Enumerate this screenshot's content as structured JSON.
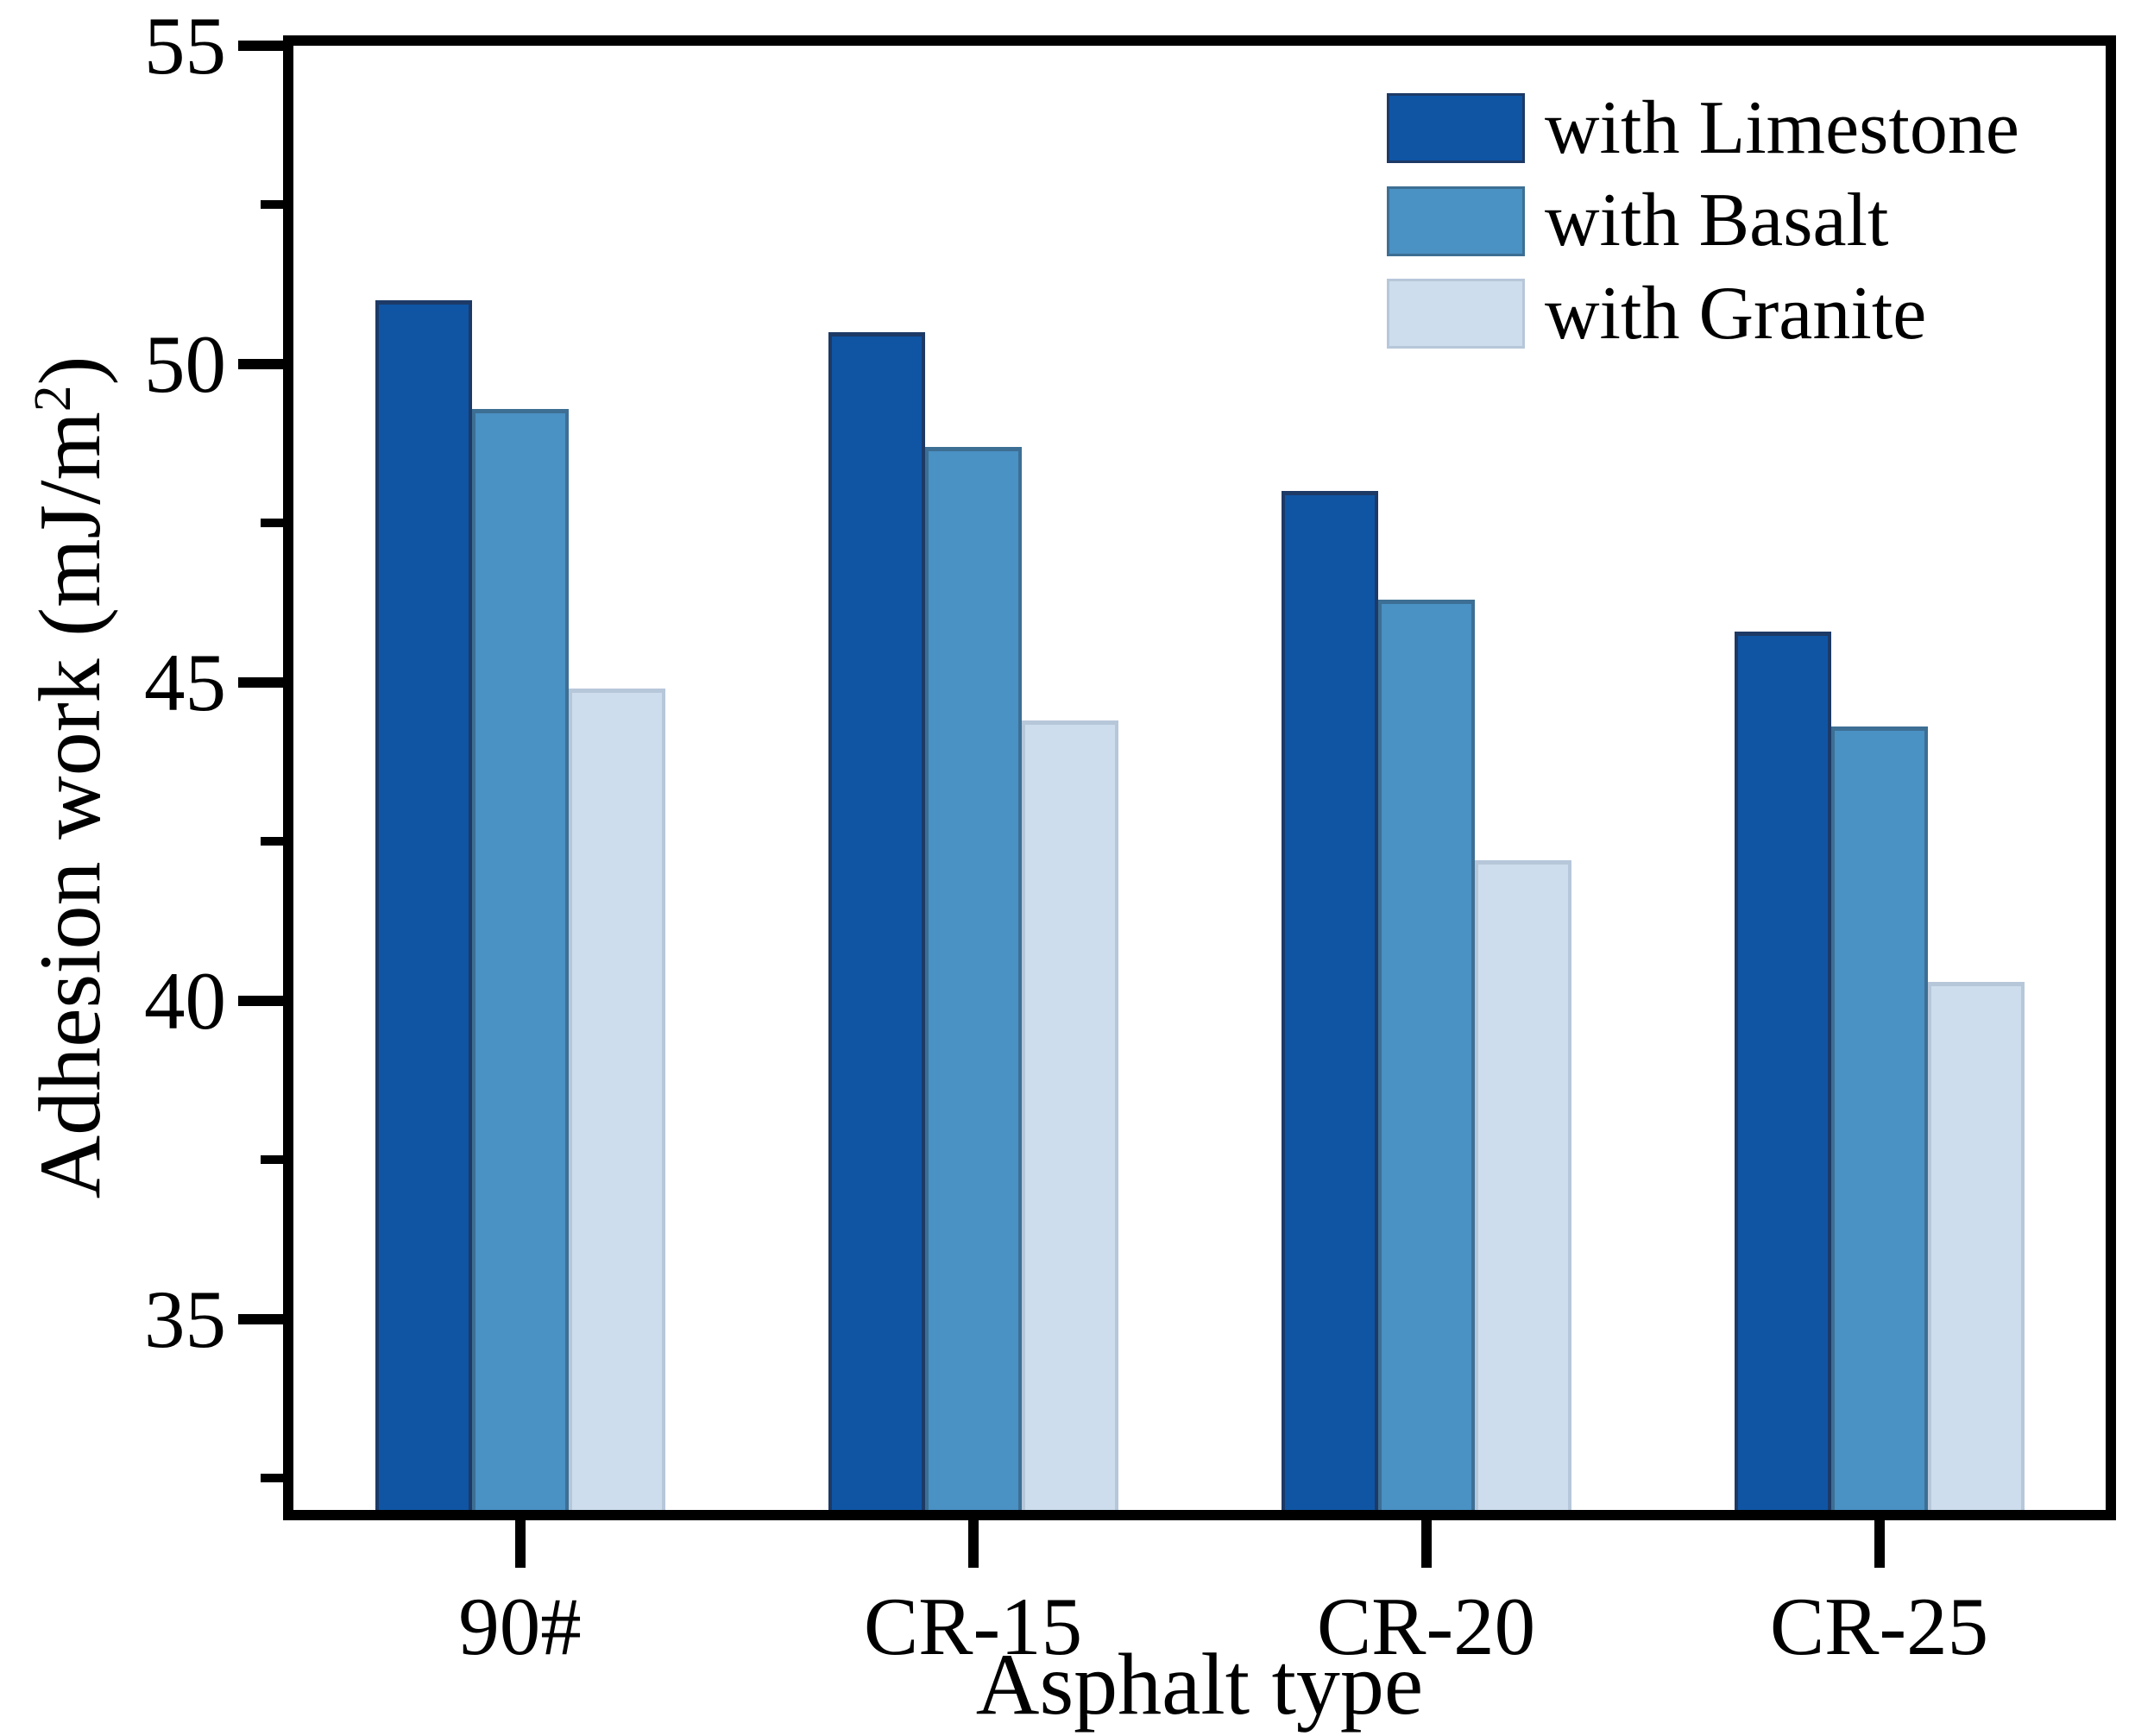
{
  "figure": {
    "background": "#ffffff",
    "text_color": "#000000",
    "axis_color": "#000000"
  },
  "y_axis": {
    "title_main": "Adhesion work (mJ/m",
    "title_sup": "2",
    "title_close": ")",
    "tick_labels": [
      "35",
      "40",
      "45",
      "50",
      "55"
    ]
  },
  "x_axis": {
    "title": "Asphalt type",
    "tick_labels": [
      "90#",
      "CR-15",
      "CR-20",
      "CR-25"
    ]
  },
  "legend": {
    "entries": [
      "with Limestone",
      "with Basalt",
      "with Granite"
    ]
  },
  "chart_data": {
    "type": "bar",
    "categories": [
      "90#",
      "CR-15",
      "CR-20",
      "CR-25"
    ],
    "series": [
      {
        "name": "with Limestone",
        "color": "#0f55a4",
        "edge_color": "#1d3a66",
        "values": [
          51.0,
          50.5,
          48.0,
          45.8
        ]
      },
      {
        "name": "with Basalt",
        "color": "#4a91c4",
        "edge_color": "#3d6f94",
        "values": [
          49.3,
          48.7,
          46.3,
          44.3
        ]
      },
      {
        "name": "with Granite",
        "color": "#cddded",
        "edge_color": "#b7c7da",
        "values": [
          44.9,
          44.4,
          42.2,
          40.3
        ]
      }
    ],
    "title": "",
    "xlabel": "Asphalt type",
    "ylabel": "Adhesion work (mJ/m²)",
    "ylim": [
      32,
      55
    ],
    "yticks_major": [
      35,
      40,
      45,
      50,
      55
    ],
    "yticks_minor": [
      32.5,
      37.5,
      42.5,
      47.5,
      52.5
    ],
    "grid": false,
    "legend_position": "upper right"
  }
}
